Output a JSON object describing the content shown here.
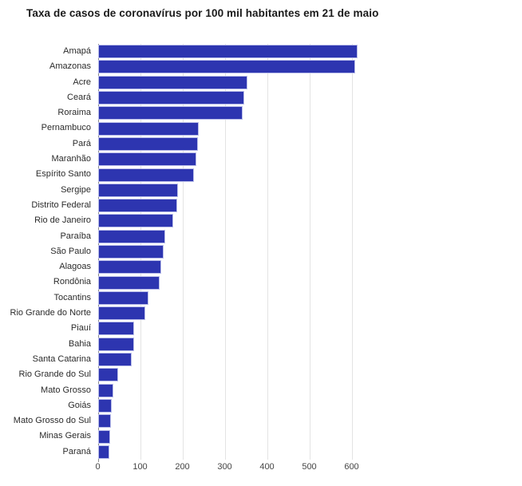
{
  "title": "Taxa de casos de coronavírus por 100 mil habitantes em 21 de maio",
  "chart_data": {
    "type": "bar",
    "orientation": "horizontal",
    "title": "Taxa de casos de coronavírus por 100 mil habitantes em 21 de maio",
    "xlabel": "",
    "ylabel": "",
    "categories": [
      "Amapá",
      "Amazonas",
      "Acre",
      "Ceará",
      "Roraima",
      "Pernambuco",
      "Pará",
      "Maranhão",
      "Espírito Santo",
      "Sergipe",
      "Distrito Federal",
      "Rio de Janeiro",
      "Paraíba",
      "São Paulo",
      "Alagoas",
      "Rondônia",
      "Tocantins",
      "Rio Grande do Norte",
      "Piauí",
      "Bahia",
      "Santa Catarina",
      "Rio Grande do Sul",
      "Mato Grosso",
      "Goiás",
      "Mato Grosso do Sul",
      "Minas Gerais",
      "Paraná"
    ],
    "values": [
      613,
      608,
      352,
      346,
      342,
      238,
      235,
      233,
      226,
      188,
      186,
      178,
      158,
      154,
      149,
      145,
      118,
      112,
      85,
      84,
      79,
      47,
      36,
      32,
      30,
      29,
      26
    ],
    "x_ticks": [
      0,
      100,
      200,
      300,
      400,
      500,
      600
    ],
    "xlim": [
      0,
      700
    ],
    "grid": true,
    "legend": "none",
    "sort": "descending",
    "colors": {
      "bar_fill": "#2d35b0",
      "bar_border": "#b9bde9",
      "gridline": "#e3e3e3",
      "axis_line": "#8c8c8c",
      "category_label": "#2b2b2b",
      "tick_label": "#454545",
      "title": "#1a1a1a"
    }
  }
}
